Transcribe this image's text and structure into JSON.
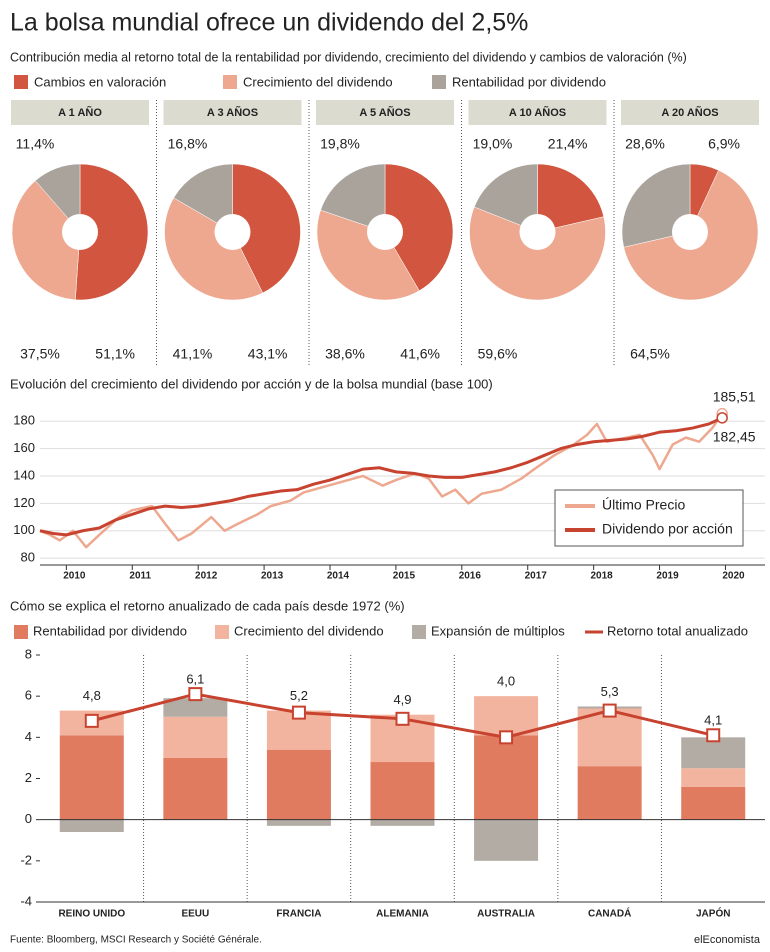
{
  "title": "La bolsa mundial ofrece un dividendo del 2,5%",
  "source": "Fuente: Bloomberg, MSCI Research y Société Générale.",
  "brand": "elEconomista",
  "chart_data": [
    {
      "type": "pie",
      "title": "Contribución media al retorno total de la rentabilidad por dividendo, crecimiento del dividendo y cambios de valoración (%)",
      "categories": [
        "Cambios en valoración",
        "Crecimiento del dividendo",
        "Rentabilidad por dividendo"
      ],
      "colors": [
        "#d2553f",
        "#eda88f",
        "#a9a39c"
      ],
      "pies": [
        {
          "title": "A 1 AÑO",
          "values": [
            51.1,
            37.5,
            11.4
          ],
          "value_labels": [
            "51,1%",
            "37,5%",
            "11,4%"
          ]
        },
        {
          "title": "A 3 AÑOS",
          "values": [
            43.1,
            41.1,
            16.8
          ],
          "value_labels": [
            "43,1%",
            "41,1%",
            "16,8%"
          ]
        },
        {
          "title": "A 5 AÑOS",
          "values": [
            41.6,
            38.6,
            19.8
          ],
          "value_labels": [
            "41,6%",
            "38,6%",
            "19,8%"
          ]
        },
        {
          "title": "A 10 AÑOS",
          "values": [
            21.4,
            59.6,
            19.0
          ],
          "value_labels": [
            "21,4%",
            "59,6%",
            "19,0%"
          ]
        },
        {
          "title": "A 20 AÑOS",
          "values": [
            6.9,
            64.5,
            28.6
          ],
          "value_labels": [
            "6,9%",
            "64,5%",
            "28,6%"
          ]
        }
      ]
    },
    {
      "type": "line",
      "title": "Evolución del crecimiento del dividendo por acción y de la bolsa mundial (base 100)",
      "xlim": [
        2009.6,
        2020.6
      ],
      "xticks": [
        2010,
        2011,
        2012,
        2013,
        2014,
        2015,
        2016,
        2017,
        2018,
        2019,
        2020
      ],
      "ylim": [
        75,
        190
      ],
      "yticks": [
        80,
        100,
        120,
        140,
        160,
        180
      ],
      "grid": true,
      "legend": "lower right",
      "series": [
        {
          "name": "Último Precio",
          "color": "#eda88f",
          "end_label": "185,51",
          "x": [
            2009.6,
            2009.75,
            2009.9,
            2010.1,
            2010.3,
            2010.5,
            2010.8,
            2011.0,
            2011.3,
            2011.5,
            2011.7,
            2011.9,
            2012.2,
            2012.4,
            2012.6,
            2012.9,
            2013.1,
            2013.4,
            2013.6,
            2013.9,
            2014.2,
            2014.5,
            2014.8,
            2015.0,
            2015.3,
            2015.5,
            2015.7,
            2015.9,
            2016.1,
            2016.3,
            2016.6,
            2016.9,
            2017.1,
            2017.4,
            2017.7,
            2017.9,
            2018.05,
            2018.2,
            2018.5,
            2018.7,
            2018.9,
            2019.0,
            2019.2,
            2019.4,
            2019.6,
            2019.8,
            2019.95
          ],
          "values": [
            100,
            97,
            93,
            100,
            88,
            97,
            110,
            115,
            118,
            105,
            93,
            98,
            110,
            100,
            105,
            112,
            118,
            122,
            128,
            132,
            136,
            140,
            133,
            137,
            142,
            138,
            125,
            130,
            120,
            127,
            130,
            138,
            145,
            155,
            163,
            170,
            178,
            165,
            168,
            170,
            155,
            145,
            163,
            168,
            165,
            175,
            185.51
          ]
        },
        {
          "name": "Dividendo por acción",
          "color": "#c8432f",
          "end_label": "182,45",
          "x": [
            2009.6,
            2009.8,
            2010.0,
            2010.25,
            2010.5,
            2010.75,
            2011.0,
            2011.25,
            2011.5,
            2011.75,
            2012.0,
            2012.25,
            2012.5,
            2012.75,
            2013.0,
            2013.25,
            2013.5,
            2013.75,
            2014.0,
            2014.25,
            2014.5,
            2014.75,
            2015.0,
            2015.25,
            2015.5,
            2015.75,
            2016.0,
            2016.25,
            2016.5,
            2016.75,
            2017.0,
            2017.25,
            2017.5,
            2017.75,
            2018.0,
            2018.25,
            2018.5,
            2018.75,
            2019.0,
            2019.25,
            2019.5,
            2019.75,
            2019.95
          ],
          "values": [
            100,
            98,
            97,
            100,
            102,
            108,
            112,
            116,
            118,
            117,
            118,
            120,
            122,
            125,
            127,
            129,
            130,
            134,
            137,
            141,
            145,
            146,
            143,
            142,
            140,
            139,
            139,
            141,
            143,
            146,
            150,
            155,
            160,
            163,
            165,
            166,
            167,
            169,
            172,
            173,
            175,
            178,
            182.45
          ]
        }
      ]
    },
    {
      "type": "bar",
      "stacked": true,
      "title": "Cómo se explica el retorno anualizado de cada país desde 1972 (%)",
      "categories": [
        "REINO UNIDO",
        "EEUU",
        "FRANCIA",
        "ALEMANIA",
        "AUSTRALIA",
        "CANADÁ",
        "JAPÓN"
      ],
      "ylim": [
        -4,
        8
      ],
      "yticks": [
        -4,
        -2,
        0,
        2,
        4,
        6,
        8
      ],
      "series": [
        {
          "name": "Rentabilidad por dividendo",
          "color": "#e07b5f",
          "values": [
            4.1,
            3.0,
            3.4,
            2.8,
            4.1,
            2.6,
            1.6
          ]
        },
        {
          "name": "Crecimiento del dividendo",
          "color": "#f2b49e",
          "values": [
            1.2,
            2.0,
            1.9,
            2.3,
            1.9,
            2.8,
            0.9
          ]
        },
        {
          "name": "Expansión de múltiplos",
          "color": "#b3aca5",
          "values": [
            -0.6,
            0.9,
            -0.3,
            -0.3,
            -2.0,
            0.1,
            1.5
          ]
        },
        {
          "name": "Retorno total anualizado",
          "color": "#c8432f",
          "type": "line",
          "values": [
            4.8,
            6.1,
            5.2,
            4.9,
            4.0,
            5.3,
            4.1
          ],
          "value_labels": [
            "4,8",
            "6,1",
            "5,2",
            "4,9",
            "4,0",
            "5,3",
            "4,1"
          ]
        }
      ]
    }
  ]
}
